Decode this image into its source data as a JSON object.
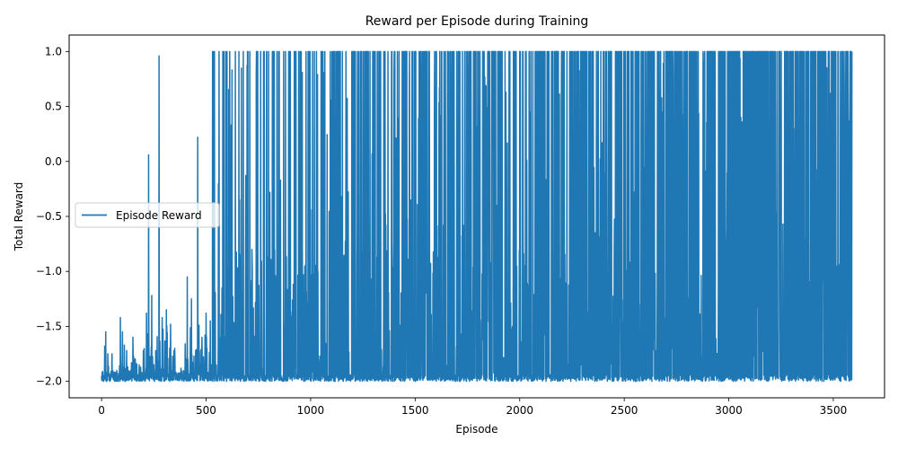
{
  "chart_data": {
    "type": "line",
    "title": "Reward per Episode during Training",
    "xlabel": "Episode",
    "ylabel": "Total Reward",
    "xlim": [
      -155,
      3745
    ],
    "ylim": [
      -2.15,
      1.15
    ],
    "x_ticks": [
      0,
      500,
      1000,
      1500,
      2000,
      2500,
      3000,
      3500
    ],
    "y_ticks": [
      1.0,
      0.5,
      0.0,
      -0.5,
      -1.0,
      -1.5,
      -2.0
    ],
    "x_tick_labels": [
      "0",
      "500",
      "1000",
      "1500",
      "2000",
      "2500",
      "3000",
      "3500"
    ],
    "y_tick_labels": [
      "1.0",
      "0.5",
      "0.0",
      "−0.5",
      "−1.0",
      "−1.5",
      "−2.0"
    ],
    "grid": false,
    "legend_position": "center-left",
    "episodes": 3590,
    "series": [
      {
        "name": "Episode Reward",
        "color": "#1f77b4",
        "description_points": [
          [
            0,
            -1.95
          ],
          [
            5,
            -1.91
          ],
          [
            10,
            -2.0
          ],
          [
            15,
            -1.68
          ],
          [
            20,
            -1.55
          ],
          [
            25,
            -2.0
          ],
          [
            30,
            -1.75
          ],
          [
            40,
            -2.0
          ],
          [
            50,
            -1.75
          ],
          [
            60,
            -1.93
          ],
          [
            80,
            -2.0
          ],
          [
            90,
            -1.42
          ],
          [
            100,
            -1.55
          ],
          [
            120,
            -1.72
          ],
          [
            140,
            -1.9
          ],
          [
            150,
            -1.6
          ],
          [
            180,
            -1.85
          ],
          [
            200,
            -1.72
          ],
          [
            215,
            -1.38
          ],
          [
            225,
            0.06
          ],
          [
            240,
            -1.22
          ],
          [
            260,
            -1.72
          ],
          [
            275,
            0.96
          ],
          [
            290,
            -1.42
          ],
          [
            310,
            -1.35
          ],
          [
            330,
            -1.48
          ],
          [
            350,
            -1.7
          ],
          [
            380,
            -1.88
          ],
          [
            410,
            -1.05
          ],
          [
            430,
            -1.25
          ],
          [
            450,
            -1.72
          ],
          [
            460,
            0.22
          ],
          [
            480,
            -1.6
          ],
          [
            500,
            -1.38
          ],
          [
            520,
            -1.45
          ],
          [
            540,
            1.0
          ],
          [
            560,
            -0.6
          ],
          [
            580,
            1.0
          ],
          [
            600,
            1.0
          ],
          [
            620,
            0.33
          ],
          [
            640,
            1.0
          ],
          [
            660,
            -0.35
          ],
          [
            700,
            1.0
          ],
          [
            720,
            -0.88
          ],
          [
            740,
            0.81
          ],
          [
            760,
            -1.2
          ],
          [
            790,
            1.0
          ],
          [
            820,
            1.0
          ],
          [
            850,
            1.0
          ],
          [
            880,
            1.0
          ],
          [
            900,
            1.0
          ],
          [
            930,
            1.0
          ],
          [
            960,
            0.81
          ],
          [
            990,
            1.0
          ],
          [
            1010,
            -1.65
          ],
          [
            1050,
            1.0
          ],
          [
            1100,
            0.56
          ],
          [
            1130,
            0.66
          ],
          [
            1150,
            -0.5
          ],
          [
            1200,
            1.0
          ],
          [
            1240,
            0.85
          ],
          [
            1280,
            -1.9
          ],
          [
            1300,
            1.0
          ],
          [
            1350,
            1.0
          ],
          [
            1400,
            1.0
          ],
          [
            1450,
            1.0
          ],
          [
            1500,
            1.0
          ],
          [
            1550,
            1.0
          ],
          [
            1600,
            1.0
          ],
          [
            1650,
            -1.93
          ],
          [
            1700,
            1.0
          ],
          [
            1750,
            1.0
          ],
          [
            1800,
            1.0
          ],
          [
            1850,
            1.0
          ],
          [
            1900,
            1.0
          ],
          [
            1950,
            1.0
          ],
          [
            2000,
            1.0
          ],
          [
            2050,
            0.45
          ],
          [
            2100,
            1.0
          ],
          [
            2200,
            1.0
          ],
          [
            2300,
            1.0
          ],
          [
            2400,
            1.0
          ],
          [
            2500,
            1.0
          ],
          [
            2600,
            1.0
          ],
          [
            2700,
            1.0
          ],
          [
            2780,
            -0.42
          ],
          [
            2800,
            1.0
          ],
          [
            2850,
            -1.92
          ],
          [
            2900,
            1.0
          ],
          [
            3000,
            1.0
          ],
          [
            3100,
            1.0
          ],
          [
            3200,
            1.0
          ],
          [
            3300,
            1.0
          ],
          [
            3400,
            1.0
          ],
          [
            3500,
            1.0
          ],
          [
            3550,
            -0.35
          ],
          [
            3580,
            1.0
          ]
        ]
      }
    ]
  }
}
